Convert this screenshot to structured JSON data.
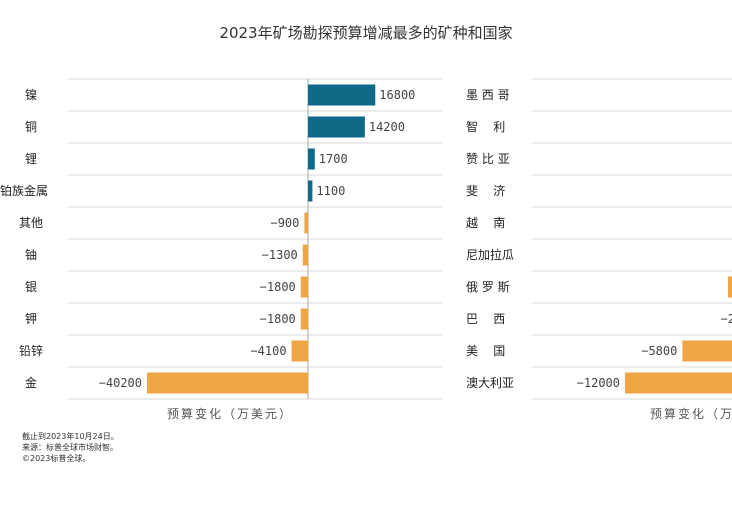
{
  "title": "2023年矿场勘探预算增减最多的矿种和国家",
  "chart_data": [
    {
      "type": "bar",
      "orientation": "horizontal",
      "title": "2023年矿场勘探预算增减最多的矿种和国家",
      "xlabel": "预算变化（万美元）",
      "categories": [
        "镍",
        "铜",
        "锂",
        "铂族金属",
        "其他",
        "铀",
        "银",
        "钾",
        "铅锌",
        "金"
      ],
      "values": [
        16800,
        14200,
        1700,
        1100,
        -900,
        -1300,
        -1800,
        -1800,
        -4100,
        -40200
      ],
      "value_labels": [
        "16800",
        "14200",
        "1700",
        "1100",
        "−900",
        "−1300",
        "−1800",
        "−1800",
        "−4100",
        "−40200"
      ],
      "colors": {
        "positive": "#0e6a86",
        "negative": "#f0a544"
      }
    },
    {
      "type": "bar",
      "orientation": "horizontal",
      "xlabel": "预算变化（万美元）",
      "xlabel_visible": "预算变化（万",
      "categories": [
        "墨 西 哥",
        "智    利",
        "赞 比 亚",
        "斐    济",
        "越    南",
        "尼加拉瓜",
        "俄 罗 斯",
        "巴    西",
        "美    国",
        "澳大利亚"
      ],
      "value_labels": [
        "",
        "",
        "",
        "",
        "",
        "",
        "−",
        "−2",
        "−5800",
        "−12000"
      ],
      "values_visible_only_for": [
        "美 国",
        "澳大利亚"
      ],
      "values_partial": {
        "美    国": -5800,
        "澳大利亚": -12000
      },
      "colors": {
        "negative": "#f0a544"
      }
    }
  ],
  "footnotes": [
    "截止到2023年10月24日。",
    "来源：标普全球市场财智。",
    "©2023标普全球。"
  ]
}
